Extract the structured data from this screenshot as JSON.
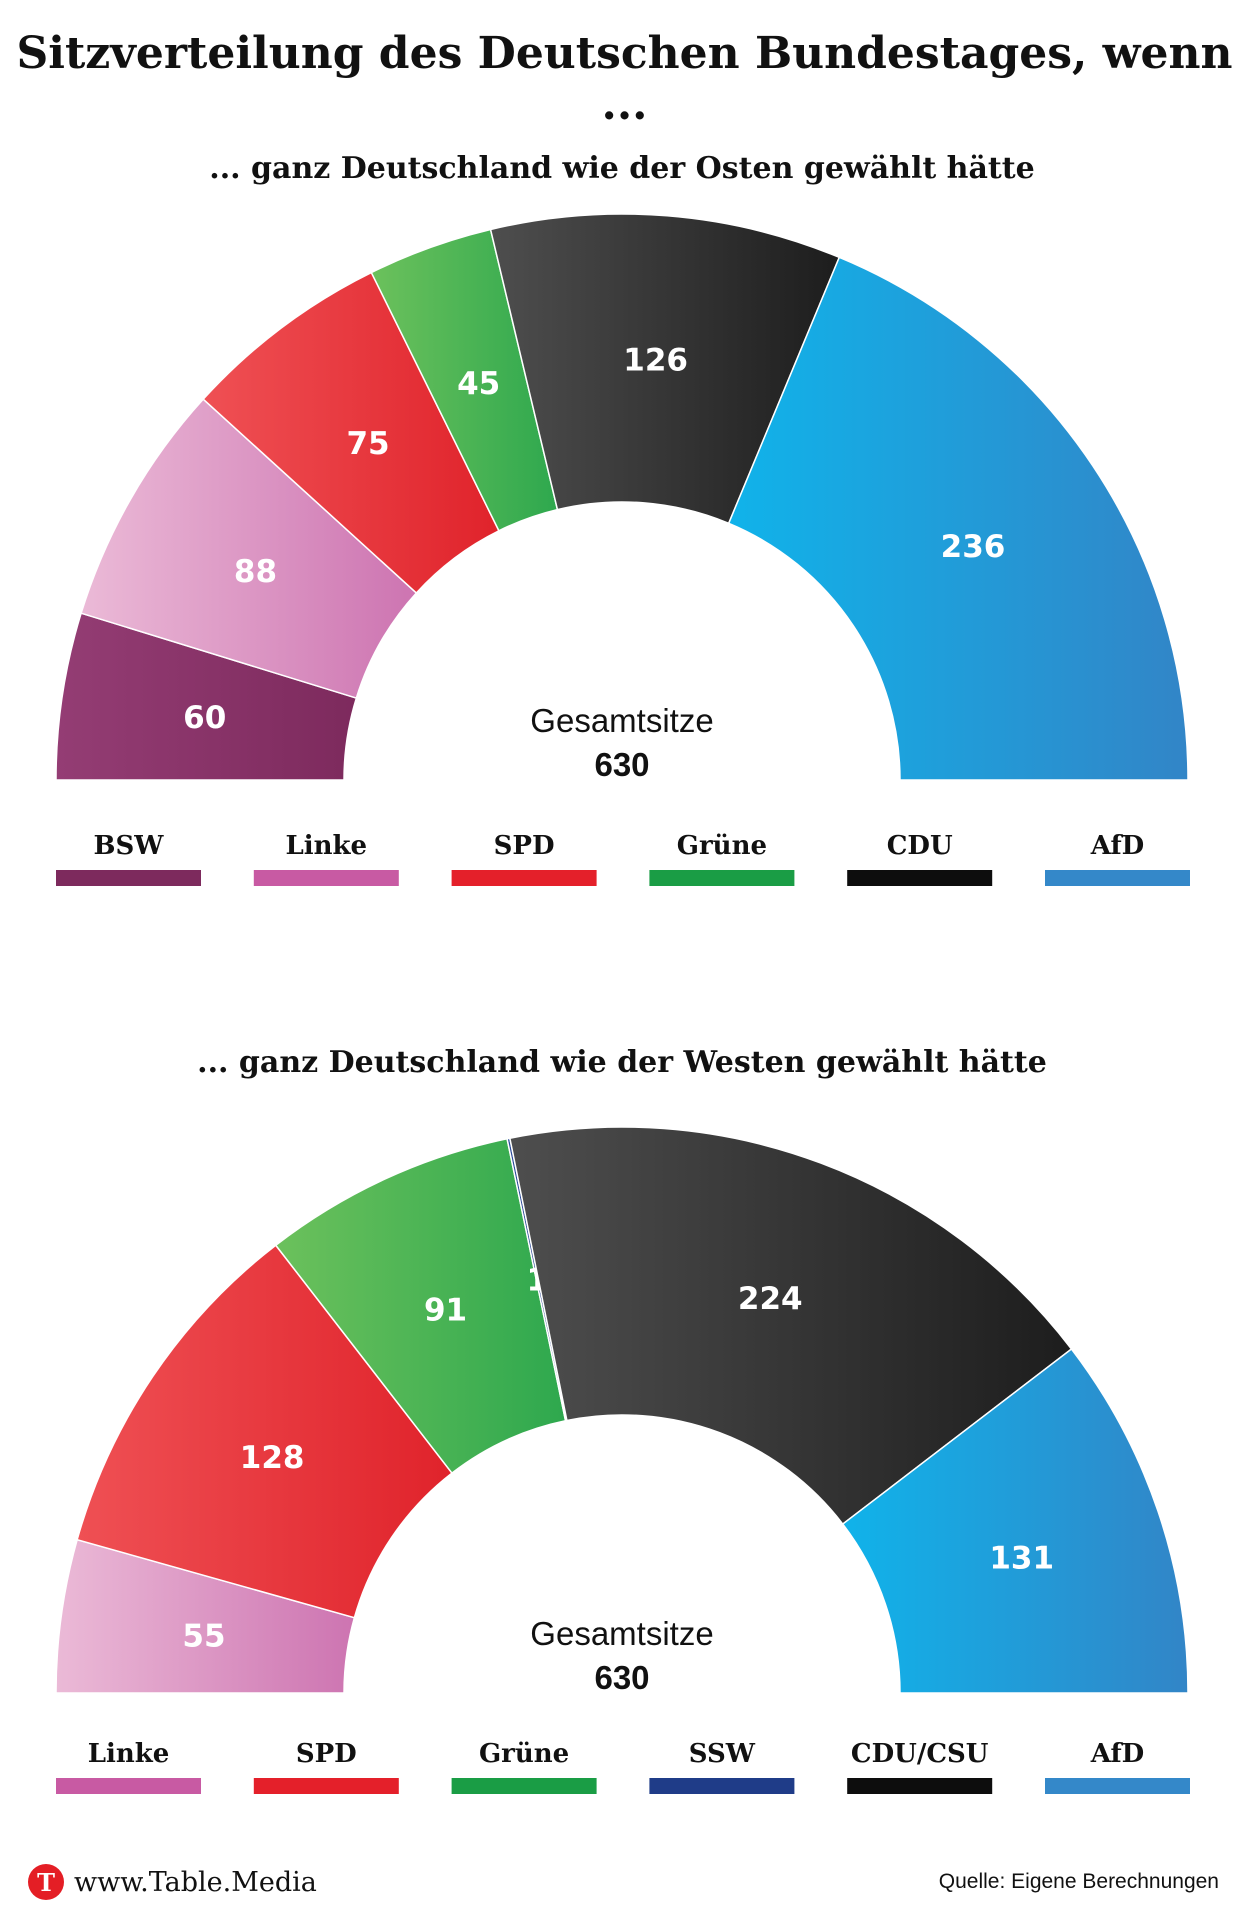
{
  "title": "Sitzverteilung des Deutschen Bundestages, wenn ...",
  "chart_data": [
    {
      "type": "parliament-semicircle",
      "subtitle": "... ganz Deutschland wie der Osten gewählt hätte",
      "total_label": "Gesamtsitze",
      "total": 630,
      "parties": [
        {
          "name": "BSW",
          "seats": 60,
          "label": "60",
          "color": "#7d2a5d",
          "grad": [
            "#943d74",
            "#7d2a5d"
          ]
        },
        {
          "name": "Linke",
          "seats": 88,
          "label": "88",
          "color": "#c85aa3",
          "grad": [
            "#ebbad7",
            "#cd74b1"
          ]
        },
        {
          "name": "SPD",
          "seats": 75,
          "label": "75",
          "color": "#e4202a",
          "grad": [
            "#ef5054",
            "#e0232b"
          ]
        },
        {
          "name": "Grüne",
          "seats": 45,
          "label": "45",
          "color": "#1a9d45",
          "grad": [
            "#6cc15c",
            "#2ea84e"
          ]
        },
        {
          "name": "CDU",
          "seats": 126,
          "label": "126",
          "color": "#0d0d0d",
          "grad": [
            "#4e4e4e",
            "#1d1d1d"
          ]
        },
        {
          "name": "AfD",
          "seats": 236,
          "label": "236",
          "color": "#3488c9",
          "grad": [
            "#10b3ea",
            "#3285c7"
          ]
        }
      ]
    },
    {
      "type": "parliament-semicircle",
      "subtitle": "... ganz Deutschland wie der Westen gewählt hätte",
      "total_label": "Gesamtsitze",
      "total": 630,
      "parties": [
        {
          "name": "Linke",
          "seats": 55,
          "label": "55",
          "color": "#c85aa3",
          "grad": [
            "#ebbad7",
            "#cd74b1"
          ]
        },
        {
          "name": "SPD",
          "seats": 128,
          "label": "128",
          "color": "#e4202a",
          "grad": [
            "#ef5054",
            "#e0232b"
          ]
        },
        {
          "name": "Grüne",
          "seats": 91,
          "label": "91",
          "color": "#1a9d45",
          "grad": [
            "#6cc15c",
            "#2ea84e"
          ]
        },
        {
          "name": "SSW",
          "seats": 1,
          "label": "1",
          "color": "#1f3c88",
          "grad": [
            "#2a4a9a",
            "#1f3c88"
          ]
        },
        {
          "name": "CDU/CSU",
          "seats": 224,
          "label": "224",
          "color": "#0d0d0d",
          "grad": [
            "#4e4e4e",
            "#1d1d1d"
          ]
        },
        {
          "name": "AfD",
          "seats": 131,
          "label": "131",
          "color": "#3488c9",
          "grad": [
            "#10b3ea",
            "#3285c7"
          ]
        }
      ]
    }
  ],
  "footer": {
    "logo_letter": "T",
    "brand": "www.Table.Media",
    "source": "Quelle: Eigene Berechnungen"
  }
}
